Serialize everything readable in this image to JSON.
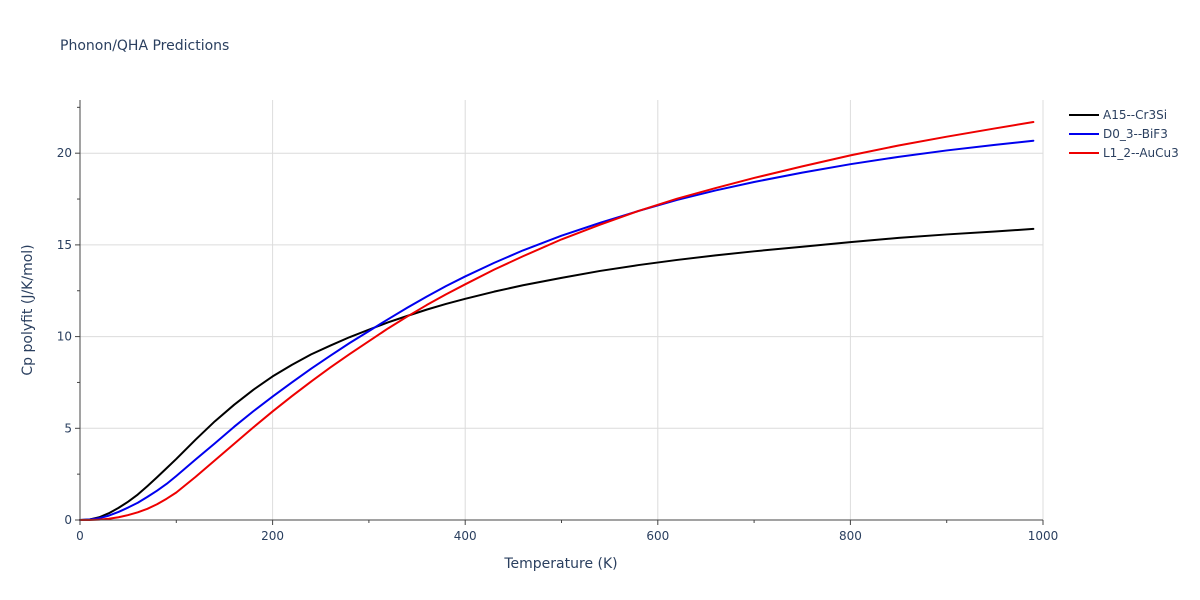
{
  "chart_data": {
    "type": "line",
    "title": "Phonon/QHA Predictions",
    "xlabel": "Temperature (K)",
    "ylabel": "Cp polyfit (J/K/mol)",
    "xlim": [
      0,
      1000
    ],
    "ylim": [
      0,
      22.9
    ],
    "x_ticks": [
      0,
      200,
      400,
      600,
      800,
      1000
    ],
    "x_tick_labels": [
      "0",
      "200",
      "400",
      "600",
      "800",
      "1000"
    ],
    "y_ticks": [
      0,
      5,
      10,
      15,
      20
    ],
    "y_tick_labels": [
      "0",
      "5",
      "10",
      "15",
      "20"
    ],
    "grid": true,
    "legend_position": "top-right",
    "x": [
      0,
      10,
      20,
      30,
      40,
      50,
      60,
      70,
      80,
      90,
      100,
      120,
      140,
      160,
      180,
      200,
      220,
      240,
      260,
      280,
      300,
      320,
      340,
      360,
      380,
      400,
      430,
      460,
      500,
      540,
      580,
      620,
      660,
      700,
      750,
      800,
      850,
      900,
      950,
      990
    ],
    "series": [
      {
        "name": "A15--Cr3Si",
        "color": "#000000",
        "values": [
          0.0,
          0.03,
          0.15,
          0.37,
          0.66,
          1.0,
          1.39,
          1.85,
          2.33,
          2.83,
          3.33,
          4.38,
          5.38,
          6.28,
          7.1,
          7.83,
          8.46,
          9.03,
          9.51,
          9.97,
          10.38,
          10.78,
          11.13,
          11.47,
          11.78,
          12.06,
          12.45,
          12.8,
          13.2,
          13.58,
          13.9,
          14.18,
          14.43,
          14.65,
          14.9,
          15.15,
          15.38,
          15.57,
          15.73,
          15.87
        ]
      },
      {
        "name": "D0_3--BiF3",
        "color": "#0000ee",
        "values": [
          0.0,
          0.03,
          0.1,
          0.24,
          0.44,
          0.68,
          0.94,
          1.26,
          1.6,
          1.97,
          2.4,
          3.3,
          4.18,
          5.08,
          5.93,
          6.73,
          7.5,
          8.25,
          8.96,
          9.65,
          10.3,
          10.95,
          11.58,
          12.18,
          12.75,
          13.28,
          14.02,
          14.7,
          15.5,
          16.2,
          16.85,
          17.45,
          17.97,
          18.43,
          18.94,
          19.4,
          19.8,
          20.15,
          20.45,
          20.68
        ]
      },
      {
        "name": "L1_2--AuCu3",
        "color": "#ee0000",
        "values": [
          0.0,
          0.0,
          0.02,
          0.07,
          0.15,
          0.27,
          0.42,
          0.61,
          0.86,
          1.16,
          1.5,
          2.35,
          3.25,
          4.15,
          5.05,
          5.92,
          6.75,
          7.55,
          8.32,
          9.05,
          9.75,
          10.45,
          11.1,
          11.72,
          12.3,
          12.85,
          13.65,
          14.38,
          15.3,
          16.1,
          16.85,
          17.52,
          18.1,
          18.65,
          19.28,
          19.88,
          20.42,
          20.9,
          21.35,
          21.7
        ]
      }
    ]
  }
}
